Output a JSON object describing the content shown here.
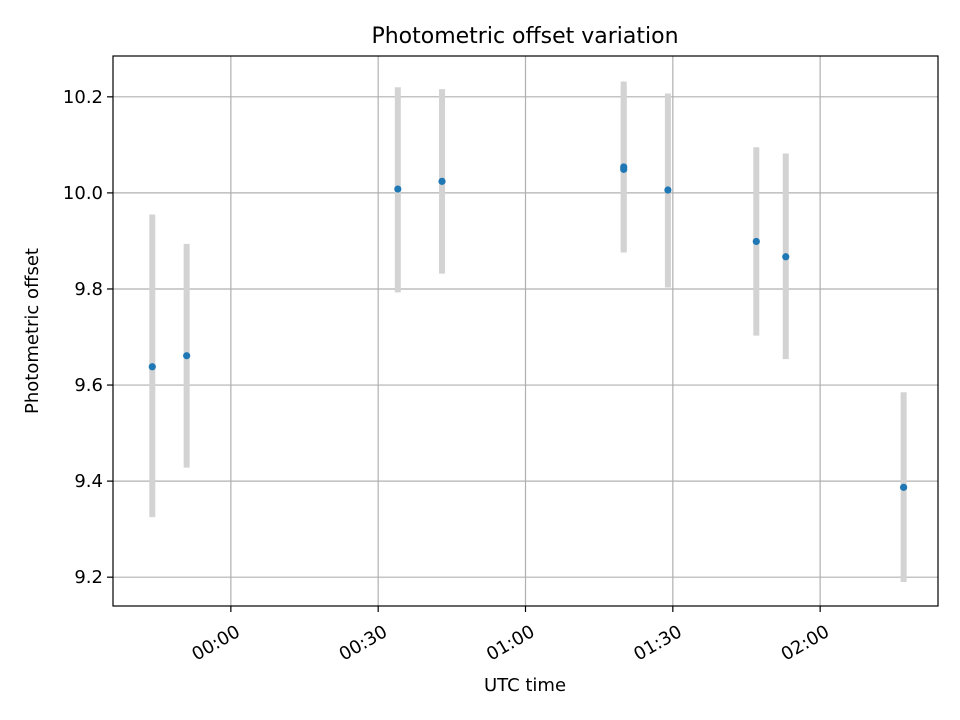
{
  "chart_data": {
    "type": "scatter",
    "title": "Photometric offset variation",
    "xlabel": "UTC time",
    "ylabel": "Photometric offset",
    "grid": true,
    "xlim": [
      "23:36",
      "02:24"
    ],
    "ylim": [
      9.14,
      10.285
    ],
    "xticks": [
      "00:00",
      "00:30",
      "01:00",
      "01:30",
      "02:00"
    ],
    "yticks": [
      9.2,
      9.4,
      9.6,
      9.8,
      10.0,
      10.2
    ],
    "colors": {
      "points": "#1f77b4",
      "errorbars": "#d3d3d3",
      "grid": "#b0b0b0"
    },
    "points": [
      {
        "x": "23:44",
        "y": 9.638,
        "ylow": 9.325,
        "yhigh": 9.955
      },
      {
        "x": "23:51",
        "y": 9.661,
        "ylow": 9.428,
        "yhigh": 9.894
      },
      {
        "x": "00:34",
        "y": 10.008,
        "ylow": 9.793,
        "yhigh": 10.22
      },
      {
        "x": "00:43",
        "y": 10.024,
        "ylow": 9.832,
        "yhigh": 10.216
      },
      {
        "x": "01:20",
        "y": 10.054,
        "ylow": 9.876,
        "yhigh": 10.232
      },
      {
        "x": "01:20",
        "y": 10.049,
        "ylow": 9.878,
        "yhigh": 10.222
      },
      {
        "x": "01:29",
        "y": 10.006,
        "ylow": 9.803,
        "yhigh": 10.207
      },
      {
        "x": "01:47",
        "y": 9.899,
        "ylow": 9.703,
        "yhigh": 10.095
      },
      {
        "x": "01:53",
        "y": 9.867,
        "ylow": 9.654,
        "yhigh": 10.082
      },
      {
        "x": "02:17",
        "y": 9.387,
        "ylow": 9.19,
        "yhigh": 9.585
      }
    ]
  }
}
